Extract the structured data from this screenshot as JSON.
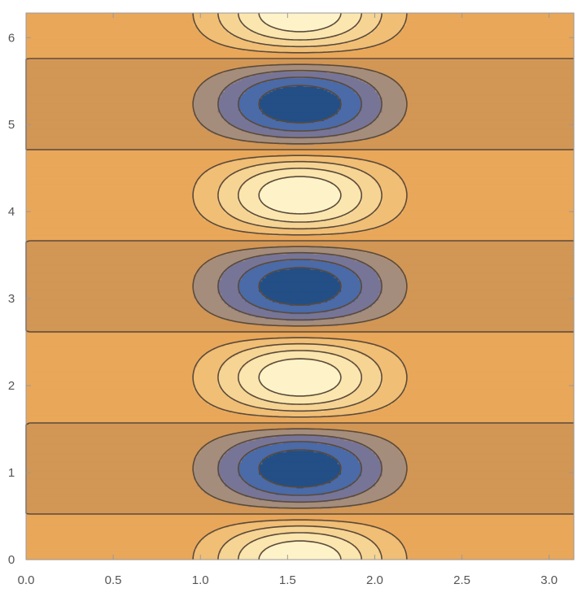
{
  "chart_data": {
    "type": "contour",
    "title": "",
    "xlabel": "",
    "ylabel": "",
    "xlim": [
      0,
      3.14159
    ],
    "ylim": [
      0,
      6.28319
    ],
    "x_ticks": [
      "0.0",
      "0.5",
      "1.0",
      "1.5",
      "2.0",
      "2.5",
      "3.0"
    ],
    "y_ticks": [
      "0",
      "1",
      "2",
      "3",
      "4",
      "5",
      "6"
    ],
    "x_tick_values": [
      0,
      0.5,
      1.0,
      1.5,
      2.0,
      2.5,
      3.0
    ],
    "y_tick_values": [
      0,
      1,
      2,
      3,
      4,
      5,
      6
    ],
    "function": "sin(x)^8 * cos(3y)",
    "contour_levels": [
      -0.8,
      -0.6,
      -0.4,
      -0.2,
      0,
      0.2,
      0.4,
      0.6,
      0.8
    ],
    "band_colors": [
      "#234f86",
      "#4a6aa8",
      "#777597",
      "#a58d7c",
      "#d29655",
      "#e9a75a",
      "#f0be75",
      "#f6d494",
      "#fae6ae",
      "#fef3c8"
    ],
    "line_color": "#5a4a3a",
    "frame_color": "#999999",
    "maxima_y": [
      0,
      2.094,
      4.189,
      6.283
    ],
    "minima_y": [
      1.047,
      3.142,
      5.236
    ],
    "peak_x": 1.5708,
    "grid": false,
    "legend": "none"
  }
}
